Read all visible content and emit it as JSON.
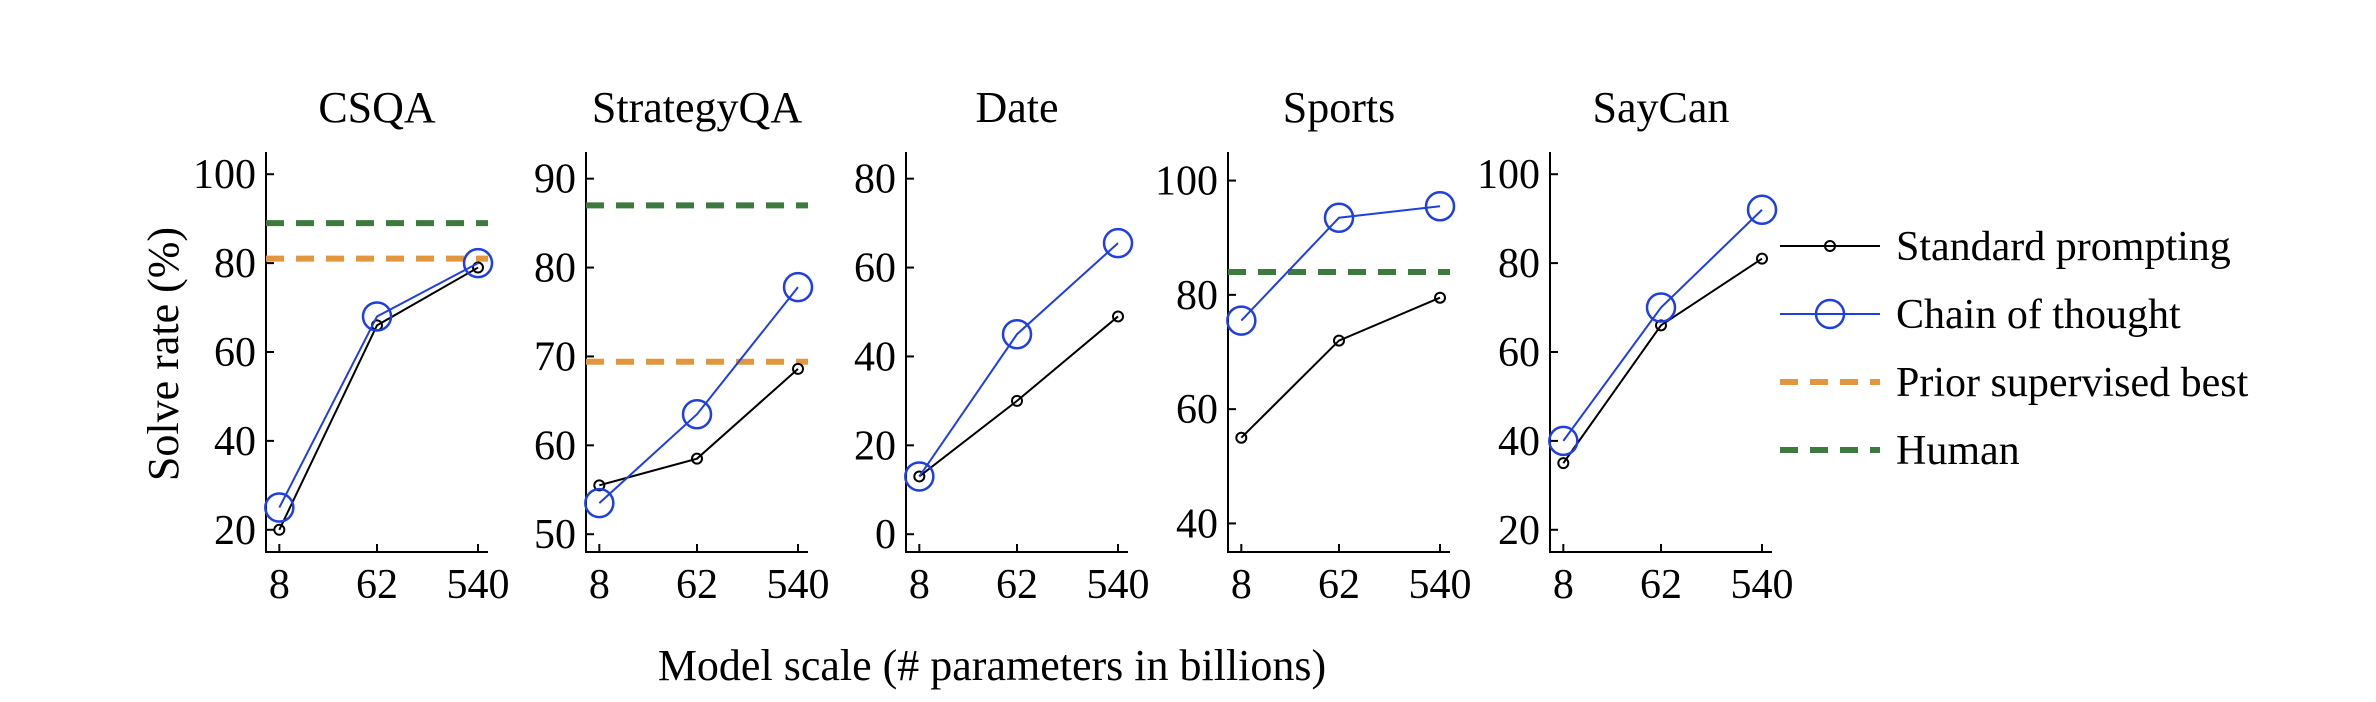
{
  "chart_data": {
    "type": "line",
    "x": [
      "8",
      "62",
      "540"
    ],
    "xlabel": "Model scale (# parameters in billions)",
    "ylabel": "Solve rate (%)",
    "colors": {
      "standard": "#000000",
      "cot": "#1f3fe0",
      "prior": "#e2973f",
      "human": "#3d7a3d"
    },
    "legend": {
      "position": "right",
      "entries": [
        {
          "key": "standard",
          "label": "Standard prompting"
        },
        {
          "key": "cot",
          "label": "Chain of thought"
        },
        {
          "key": "prior",
          "label": "Prior supervised best"
        },
        {
          "key": "human",
          "label": "Human"
        }
      ]
    },
    "panels": [
      {
        "title": "CSQA",
        "ylim": [
          15,
          105
        ],
        "yticks": [
          20,
          40,
          60,
          80,
          100
        ],
        "series": [
          {
            "name": "Standard prompting",
            "key": "standard",
            "values": [
              20,
              66,
              79
            ]
          },
          {
            "name": "Chain of thought",
            "key": "cot",
            "values": [
              25,
              68,
              80
            ]
          }
        ],
        "hlines": [
          {
            "name": "Human",
            "key": "human",
            "value": 89
          },
          {
            "name": "Prior supervised best",
            "key": "prior",
            "value": 81
          }
        ]
      },
      {
        "title": "StrategyQA",
        "ylim": [
          48,
          93
        ],
        "yticks": [
          50,
          60,
          70,
          80,
          90
        ],
        "series": [
          {
            "name": "Standard prompting",
            "key": "standard",
            "values": [
              55.5,
              58.5,
              68.6
            ]
          },
          {
            "name": "Chain of thought",
            "key": "cot",
            "values": [
              53.5,
              63.5,
              77.8
            ]
          }
        ],
        "hlines": [
          {
            "name": "Human",
            "key": "human",
            "value": 87
          },
          {
            "name": "Prior supervised best",
            "key": "prior",
            "value": 69.4
          }
        ]
      },
      {
        "title": "Date",
        "ylim": [
          -4,
          86
        ],
        "yticks": [
          0,
          20,
          40,
          60,
          80
        ],
        "series": [
          {
            "name": "Standard prompting",
            "key": "standard",
            "values": [
              13,
              30,
              49
            ]
          },
          {
            "name": "Chain of thought",
            "key": "cot",
            "values": [
              13,
              45,
              65.5
            ]
          }
        ],
        "hlines": []
      },
      {
        "title": "Sports",
        "ylim": [
          35,
          105
        ],
        "yticks": [
          40,
          60,
          80,
          100
        ],
        "series": [
          {
            "name": "Standard prompting",
            "key": "standard",
            "values": [
              55,
              72,
              79.5
            ]
          },
          {
            "name": "Chain of thought",
            "key": "cot",
            "values": [
              75.5,
              93.5,
              95.5
            ]
          }
        ],
        "hlines": [
          {
            "name": "Human",
            "key": "human",
            "value": 84
          }
        ]
      },
      {
        "title": "SayCan",
        "ylim": [
          15,
          105
        ],
        "yticks": [
          20,
          40,
          60,
          80,
          100
        ],
        "series": [
          {
            "name": "Standard prompting",
            "key": "standard",
            "values": [
              35,
              66,
              81
            ]
          },
          {
            "name": "Chain of thought",
            "key": "cot",
            "values": [
              40,
              70,
              92
            ]
          }
        ],
        "hlines": []
      }
    ]
  }
}
